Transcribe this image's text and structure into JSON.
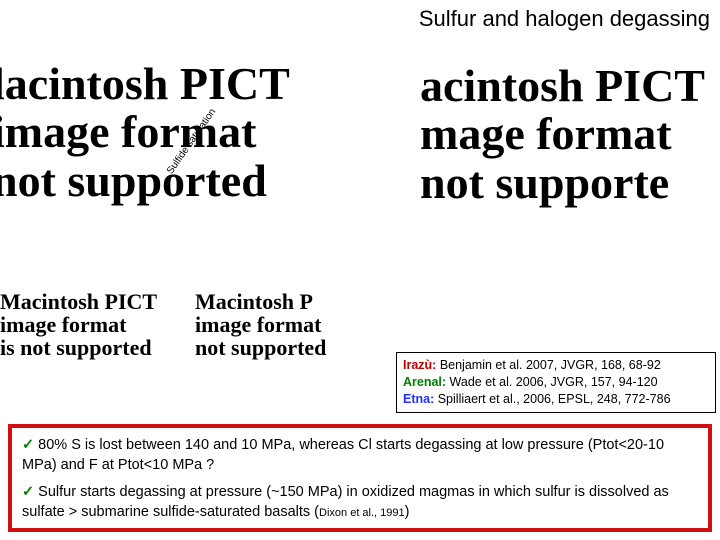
{
  "title": "Sulfur and halogen degassing",
  "rotated_label": "Sulfide saturation",
  "placeholders": {
    "ph1": "lacintosh PICT\nimage format\nnot supported",
    "ph2": "acintosh PICT\nmage format\nnot supporte",
    "ph3": "Macintosh PICT\nimage format\nis not supported",
    "ph4": "Macintosh P\nimage format\nnot supported"
  },
  "refs": [
    {
      "volcano": "Irazù:",
      "rest": " Benjamin et al. 2007, JVGR, 168, 68-92",
      "color_class": "c-red"
    },
    {
      "volcano": "Arenal:",
      "rest": " Wade et al. 2006, JVGR, 157, 94-120",
      "color_class": "c-green"
    },
    {
      "volcano": "Etna:",
      "rest": " Spilliaert et al., 2006, EPSL, 248, 772-786",
      "color_class": "c-blue"
    }
  ],
  "bullets": {
    "b1": "80% S is lost between 140 and 10 MPa, whereas Cl starts degassing at low pressure (Ptot<20-10 MPa) and F at Ptot<10 MPa ?",
    "b2_a": "Sulfur starts degassing at pressure (~150 MPa) in oxidized magmas in which sulfur is dissolved as sulfate > submarine sulfide-saturated basalts (",
    "b2_cite": "Dixon et al., 1991",
    "b2_b": ")"
  },
  "colors": {
    "border_red": "#d01010",
    "check_green": "#008000"
  }
}
